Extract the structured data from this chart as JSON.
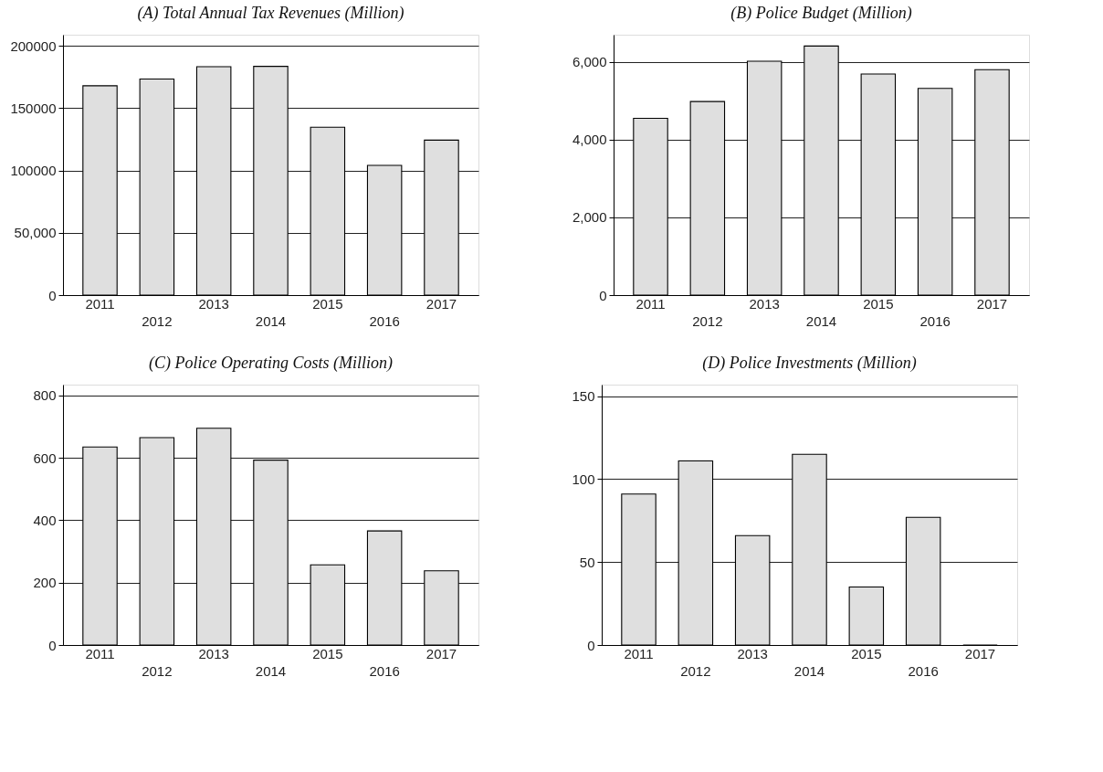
{
  "chart_data": [
    {
      "type": "bar",
      "title": "(A) Total Annual Tax Revenues (Million)",
      "categories": [
        "2011",
        "2012",
        "2013",
        "2014",
        "2015",
        "2016",
        "2017"
      ],
      "values": [
        168000,
        173400,
        183300,
        183600,
        134800,
        104100,
        124400
      ],
      "color": "#dfdfdf",
      "ylim": [
        0,
        209000
      ],
      "yticks": [
        0,
        {
          "value": 50000,
          "label": "50,000"
        },
        100000,
        150000,
        200000
      ],
      "grid": "y"
    },
    {
      "type": "bar",
      "title": "(B) Police Budget (Million)",
      "categories": [
        "2011",
        "2012",
        "2013",
        "2014",
        "2015",
        "2016",
        "2017"
      ],
      "values": [
        4550,
        4980,
        6020,
        6410,
        5690,
        5320,
        5800
      ],
      "color": "#dfdfdf",
      "ylim": [
        0,
        6700
      ],
      "yticks": [
        0,
        {
          "value": 2000,
          "label": "2,000"
        },
        {
          "value": 4000,
          "label": "4,000"
        },
        {
          "value": 6000,
          "label": "6,000"
        }
      ],
      "grid": "y"
    },
    {
      "type": "bar",
      "title": "(C) Police Operating Costs (Million)",
      "categories": [
        "2011",
        "2012",
        "2013",
        "2014",
        "2015",
        "2016",
        "2017"
      ],
      "values": [
        635,
        665,
        695,
        593,
        257,
        366,
        238
      ],
      "color": "#dfdfdf",
      "ylim": [
        0,
        835
      ],
      "yticks": [
        0,
        200,
        400,
        600,
        800
      ],
      "grid": "y"
    },
    {
      "type": "bar",
      "title": "(D) Police Investments (Million)",
      "categories": [
        "2011",
        "2012",
        "2013",
        "2014",
        "2015",
        "2016",
        "2017"
      ],
      "values": [
        91,
        111,
        66,
        115,
        35,
        77,
        0
      ],
      "color": "#dfdfdf",
      "ylim": [
        0,
        157
      ],
      "yticks": [
        0,
        50,
        100,
        150
      ],
      "grid": "y"
    }
  ]
}
